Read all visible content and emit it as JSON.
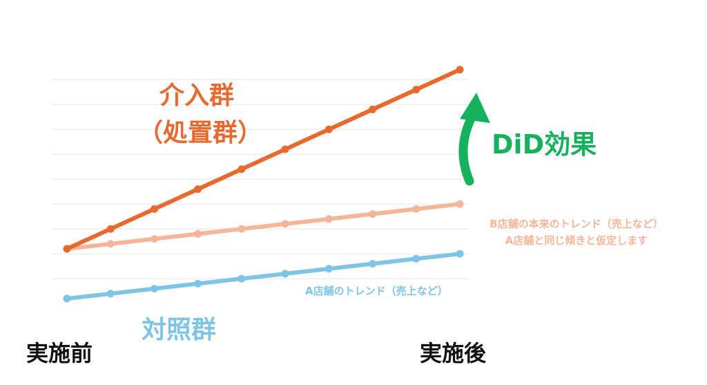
{
  "colors": {
    "treatment": "#e8692e",
    "counterfactual": "#f5b598",
    "control": "#7fc4e6",
    "did_arrow": "#16b15c",
    "grid": "#e6e6e6",
    "axis_text": "#111111"
  },
  "labels": {
    "intervention_line1": "介入群",
    "intervention_line2": "（処置群）",
    "control": "対照群",
    "did": "DiD効果",
    "b_note_line1": "B店舗の本来のトレンド（売上など）",
    "b_note_line2": "A店舗と同じ傾きと仮定します",
    "a_trend": "A店舗のトレンド（売上など）",
    "before": "実施前",
    "after": "実施後"
  },
  "chart_data": {
    "type": "line",
    "x": [
      0,
      1,
      2,
      3,
      4,
      5,
      6,
      7,
      8,
      9
    ],
    "xlim": [
      0,
      9
    ],
    "ylim": [
      -1,
      8
    ],
    "grid": true,
    "series": [
      {
        "key": "treatment",
        "values": [
          1,
          1.8,
          2.6,
          3.4,
          4.2,
          5.0,
          5.8,
          6.6,
          7.4,
          8.2
        ]
      },
      {
        "key": "counterfactual",
        "values": [
          1,
          1.2,
          1.4,
          1.6,
          1.8,
          2.0,
          2.2,
          2.4,
          2.6,
          2.8
        ]
      },
      {
        "key": "control",
        "values": [
          -1,
          -0.8,
          -0.6,
          -0.4,
          -0.2,
          0,
          0.2,
          0.4,
          0.6,
          0.8
        ]
      }
    ],
    "annotations": [
      "介入群（処置群）",
      "対照群",
      "DiD効果",
      "B店舗の本来のトレンド（売上など）",
      "A店舗と同じ傾きと仮定します",
      "A店舗のトレンド（売上など）",
      "実施前",
      "実施後"
    ]
  }
}
